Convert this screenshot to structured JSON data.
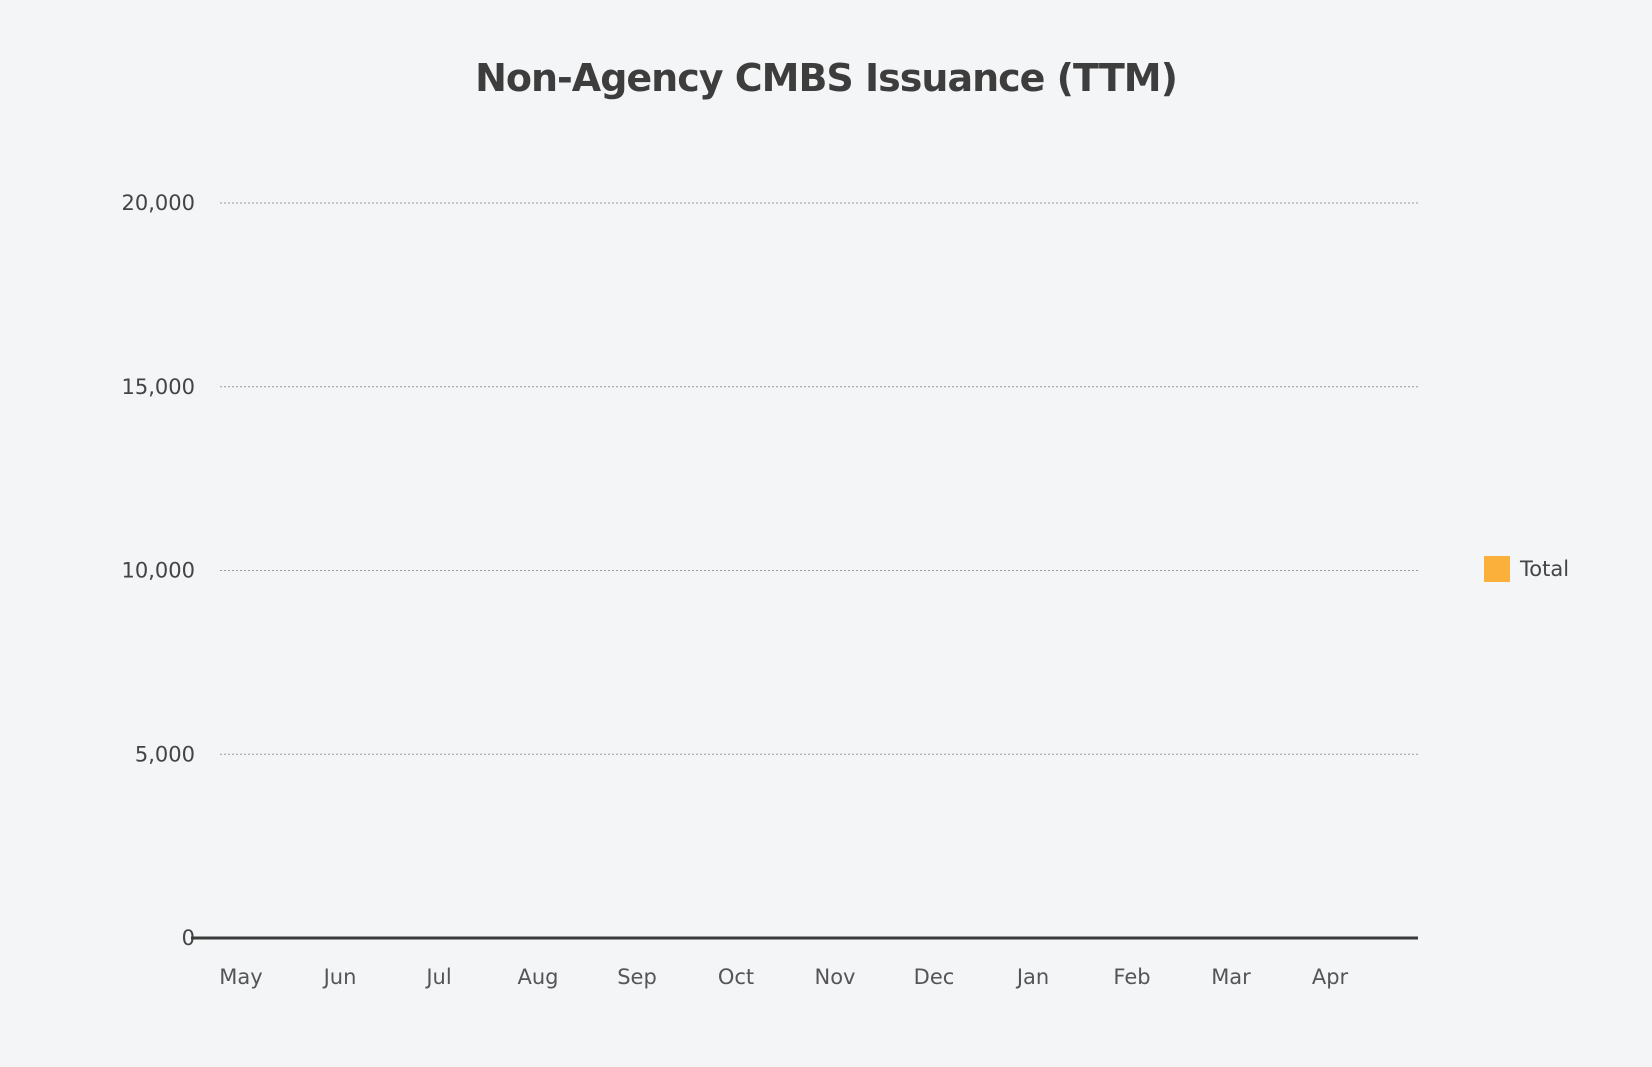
{
  "chart_data": {
    "type": "bar",
    "title": "Non-Agency CMBS Issuance (TTM)",
    "categories": [
      "May",
      "Jun",
      "Jul",
      "Aug",
      "Sep",
      "Oct",
      "Nov",
      "Dec",
      "Jan",
      "Feb",
      "Mar",
      "Apr"
    ],
    "series": [
      {
        "name": "Total",
        "color": "#fbb03b",
        "values": [
          0,
          0,
          0,
          0,
          0,
          0,
          0,
          0,
          0,
          0,
          0,
          0
        ]
      }
    ],
    "yticks": [
      0,
      5000,
      10000,
      15000,
      20000
    ],
    "ytick_labels": [
      "0",
      "5,000",
      "10,000",
      "15,000",
      "20,000"
    ],
    "ylim": [
      0,
      20000
    ],
    "xlabel": "",
    "ylabel": "",
    "grid": true,
    "legend_position": "right"
  }
}
